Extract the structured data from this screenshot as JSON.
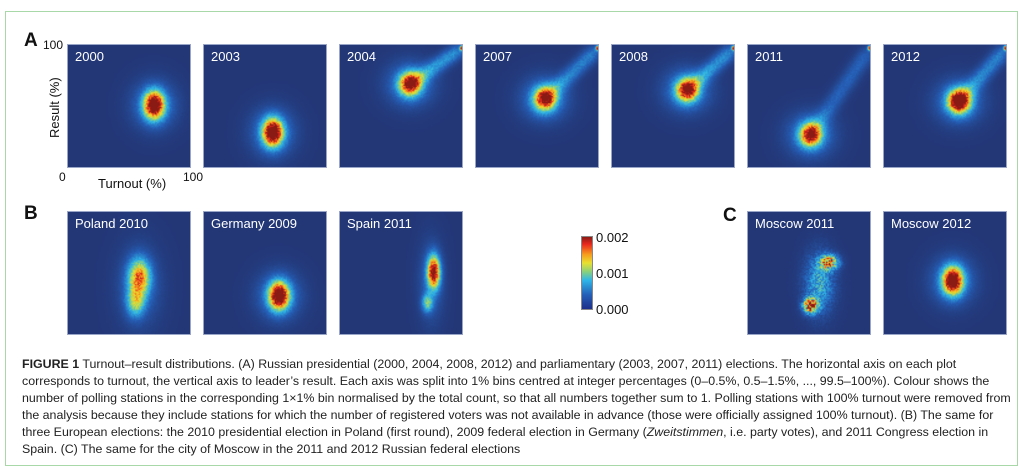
{
  "chart_data": {
    "type": "heatmap",
    "title": "Turnout-result distributions",
    "xlabel": "Turnout (%)",
    "ylabel": "Result (%)",
    "xlim": [
      0,
      100
    ],
    "ylim": [
      0,
      100
    ],
    "x_ticks": [
      "0",
      "100"
    ],
    "y_ticks": [
      "100"
    ],
    "colorbar": {
      "min": 0.0,
      "max": 0.002,
      "ticks": [
        "0.002",
        "0.001",
        "0.000"
      ],
      "colormap": "jet"
    },
    "panels": [
      {
        "group": "A",
        "label": "2000",
        "peak_turnout": 69,
        "peak_result": 52,
        "shape": "blob"
      },
      {
        "group": "A",
        "label": "2003",
        "peak_turnout": 55,
        "peak_result": 30,
        "shape": "blob"
      },
      {
        "group": "A",
        "label": "2004",
        "peak_turnout": 56,
        "peak_result": 69,
        "shape": "blob-with-tail",
        "tail_to": [
          99,
          99
        ]
      },
      {
        "group": "A",
        "label": "2007",
        "peak_turnout": 55,
        "peak_result": 57,
        "shape": "comet",
        "tail_to": [
          99,
          99
        ]
      },
      {
        "group": "A",
        "label": "2008",
        "peak_turnout": 60,
        "peak_result": 64,
        "shape": "comet",
        "tail_to": [
          99,
          99
        ]
      },
      {
        "group": "A",
        "label": "2011",
        "peak_turnout": 50,
        "peak_result": 28,
        "shape": "comet",
        "tail_to": [
          99,
          99
        ]
      },
      {
        "group": "A",
        "label": "2012",
        "peak_turnout": 60,
        "peak_result": 55,
        "shape": "comet",
        "tail_to": [
          99,
          99
        ]
      },
      {
        "group": "B",
        "label": "Poland 2010",
        "peak_turnout": 57,
        "peak_result": 48,
        "shape": "elongated-vertical"
      },
      {
        "group": "B",
        "label": "Germany 2009",
        "peak_turnout": 60,
        "peak_result": 33,
        "shape": "blob"
      },
      {
        "group": "B",
        "label": "Spain 2011",
        "peak_turnout": 75,
        "peak_result": 52,
        "shape": "elongated-vertical"
      },
      {
        "group": "C",
        "label": "Moscow 2011",
        "peak_turnout": 50,
        "peak_result": 25,
        "shape": "two-clusters"
      },
      {
        "group": "C",
        "label": "Moscow 2012",
        "peak_turnout": 55,
        "peak_result": 45,
        "shape": "blob"
      }
    ]
  },
  "letters": {
    "a": "A",
    "b": "B",
    "c": "C"
  },
  "axis": {
    "y_top": "100",
    "x_left": "0",
    "x_right": "100",
    "xlabel": "Turnout (%)",
    "ylabel": "Result (%)"
  },
  "caption": {
    "label": "FIGURE 1",
    "text_1": " Turnout–result distributions. (A) Russian presidential (2000, 2004, 2008, 2012) and parliamentary (2003, 2007, 2011) elections. The horizontal axis on each plot corresponds to turnout, the vertical axis to leader’s result. Each axis was split into 1% bins centred at integer percentages (0–0.5%, 0.5–1.5%, ..., 99.5–100%). Colour shows the number of polling stations in the corresponding 1×1% bin normalised by the total count, so that all numbers together sum to 1. Polling stations with 100% turnout were removed from the analysis because they include stations for which the number of registered voters was not available in advance (those were officially assigned 100% turnout). (B) The same for three European elections: the 2010 presidential election in Poland (first round), 2009 federal election in Germany (",
    "italic": "Zweitstimmen",
    "text_2": ", i.e. party votes), and 2011 Congress election in Spain. (C) The same for the city of Moscow in the 2011 and 2012 Russian federal elections"
  }
}
